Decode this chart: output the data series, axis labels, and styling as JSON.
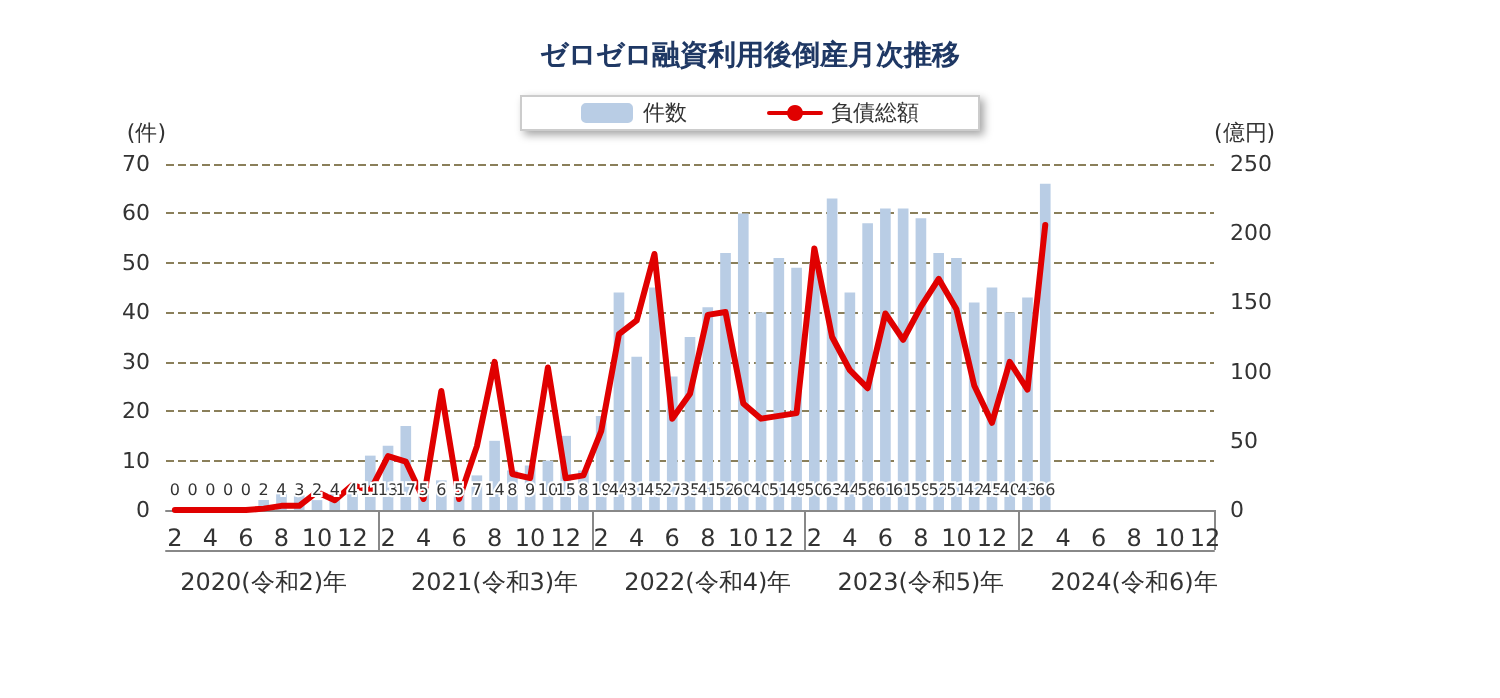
{
  "chart_data": {
    "type": "bar",
    "title": "ゼロゼロ融資利用後倒産月次推移",
    "ylabel": "(件)",
    "y2label": "(億円)",
    "categories": [
      "2",
      null,
      "4",
      null,
      "6",
      null,
      "8",
      null,
      "10",
      null,
      "12",
      null,
      "2",
      null,
      "4",
      null,
      "6",
      null,
      "8",
      null,
      "10",
      null,
      "12",
      null,
      "2",
      null,
      "4",
      null,
      "6",
      null,
      "8",
      null,
      "10",
      null,
      "12",
      null,
      "2",
      null,
      "4",
      null,
      "6",
      null,
      "8",
      null,
      "10",
      null,
      "12",
      null,
      "2",
      null,
      "4",
      null,
      "6",
      null,
      "8",
      null,
      "10",
      null,
      "12"
    ],
    "series": [
      {
        "name": "件数",
        "color": "#b9cde5",
        "values": [
          0,
          0,
          0,
          0,
          0,
          2,
          4,
          3,
          2,
          4,
          4,
          11,
          13,
          17,
          5,
          6,
          5,
          7,
          14,
          8,
          9,
          10,
          15,
          8,
          19,
          44,
          31,
          45,
          27,
          35,
          41,
          52,
          60,
          40,
          51,
          49,
          50,
          63,
          44,
          58,
          61,
          61,
          59,
          52,
          51,
          42,
          45,
          40,
          43,
          66,
          null,
          null,
          null,
          null,
          null,
          null,
          null,
          null,
          null
        ],
        "value_labels": [
          "0",
          "0",
          "0",
          "0",
          "0",
          "2",
          "4",
          "3",
          "2",
          "4",
          "4",
          "11",
          "13",
          "17",
          "5",
          "6",
          "5",
          "7",
          "14",
          "8",
          "9",
          "10",
          "15",
          "8",
          "19",
          "44",
          "31",
          "45",
          "27",
          "35",
          "41",
          "52",
          "60",
          "40",
          "51",
          "49",
          "50",
          "63",
          "44",
          "58",
          "61",
          "61",
          "59",
          "52",
          "51",
          "42",
          "45",
          "40",
          "43",
          "66",
          null,
          null,
          null,
          null,
          null,
          null,
          null,
          null,
          null
        ]
      },
      {
        "name": "負債総額",
        "type": "line",
        "axis": "y2",
        "color": "#e00000",
        "values": [
          0,
          0,
          0,
          0,
          0,
          1,
          3,
          3,
          13,
          7,
          18,
          14,
          39,
          35,
          8,
          86,
          8,
          46,
          107,
          26,
          23,
          103,
          23,
          25,
          57,
          127,
          137,
          185,
          66,
          84,
          141,
          143,
          77,
          66,
          68,
          70,
          189,
          125,
          101,
          88,
          142,
          123,
          147,
          167,
          145,
          90,
          63,
          107,
          87,
          206,
          null,
          null,
          null,
          null,
          null,
          null,
          null,
          null,
          null
        ]
      }
    ],
    "ylim": [
      0,
      70
    ],
    "yticks": [
      0,
      10,
      20,
      30,
      40,
      50,
      60,
      70
    ],
    "y2lim": [
      0,
      250
    ],
    "y2ticks": [
      0,
      50,
      100,
      150,
      200,
      250
    ],
    "grid": "y",
    "legend": "top",
    "marker": "none",
    "line_style": "solid",
    "annotations": [
      "2020(令和2)年",
      "2021(令和3)年",
      "2022(令和4)年",
      "2023(令和5)年",
      "2024(令和6)年"
    ]
  }
}
